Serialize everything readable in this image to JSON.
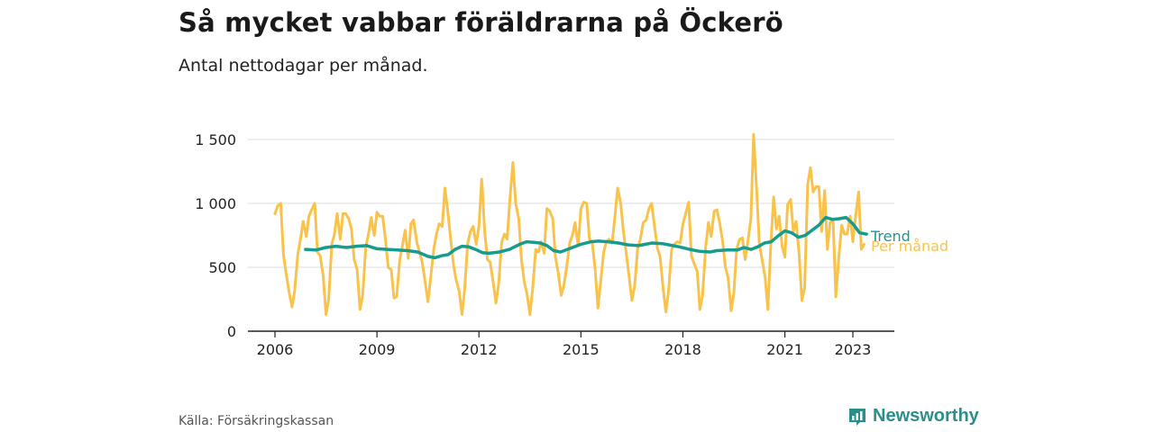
{
  "header": {
    "title": "Så mycket vabbar föräldrarna på Öckerö",
    "subtitle": "Antal nettodagar per månad."
  },
  "footer": {
    "source": "Källa: Försäkringskassan",
    "brand": "Newsworthy"
  },
  "colors": {
    "monthly": "#f9c34b",
    "trend": "#179b8e",
    "grid": "#dddddd",
    "axis": "#222222",
    "brand": "#2a8f8a"
  },
  "chart_data": {
    "type": "line",
    "xlabel": "",
    "ylabel": "",
    "ylim": [
      0,
      1600
    ],
    "xlim": [
      2006.0,
      2024.2
    ],
    "yticks": [
      {
        "value": 0,
        "label": "0"
      },
      {
        "value": 500,
        "label": "500"
      },
      {
        "value": 1000,
        "label": "1 000"
      },
      {
        "value": 1500,
        "label": "1 500"
      }
    ],
    "xticks": [
      {
        "value": 2006,
        "label": "2006"
      },
      {
        "value": 2009,
        "label": "2009"
      },
      {
        "value": 2012,
        "label": "2012"
      },
      {
        "value": 2015,
        "label": "2015"
      },
      {
        "value": 2018,
        "label": "2018"
      },
      {
        "value": 2021,
        "label": "2021"
      },
      {
        "value": 2023,
        "label": "2023"
      }
    ],
    "grid": true,
    "legend": "inline-right",
    "series": [
      {
        "name": "Per månad",
        "color": "#f9c34b",
        "points": [
          [
            2006.0,
            920
          ],
          [
            2006.08,
            980
          ],
          [
            2006.17,
            1000
          ],
          [
            2006.25,
            600
          ],
          [
            2006.33,
            450
          ],
          [
            2006.42,
            300
          ],
          [
            2006.5,
            190
          ],
          [
            2006.58,
            320
          ],
          [
            2006.67,
            600
          ],
          [
            2006.75,
            720
          ],
          [
            2006.83,
            860
          ],
          [
            2006.92,
            740
          ],
          [
            2007.0,
            900
          ],
          [
            2007.08,
            950
          ],
          [
            2007.17,
            1000
          ],
          [
            2007.25,
            620
          ],
          [
            2007.33,
            590
          ],
          [
            2007.42,
            430
          ],
          [
            2007.5,
            130
          ],
          [
            2007.58,
            250
          ],
          [
            2007.67,
            680
          ],
          [
            2007.75,
            760
          ],
          [
            2007.83,
            920
          ],
          [
            2007.92,
            720
          ],
          [
            2008.0,
            920
          ],
          [
            2008.08,
            920
          ],
          [
            2008.17,
            880
          ],
          [
            2008.25,
            800
          ],
          [
            2008.33,
            560
          ],
          [
            2008.42,
            480
          ],
          [
            2008.5,
            170
          ],
          [
            2008.58,
            280
          ],
          [
            2008.67,
            660
          ],
          [
            2008.75,
            760
          ],
          [
            2008.83,
            890
          ],
          [
            2008.92,
            750
          ],
          [
            2009.0,
            930
          ],
          [
            2009.08,
            900
          ],
          [
            2009.17,
            900
          ],
          [
            2009.25,
            720
          ],
          [
            2009.33,
            500
          ],
          [
            2009.42,
            480
          ],
          [
            2009.5,
            260
          ],
          [
            2009.58,
            270
          ],
          [
            2009.67,
            560
          ],
          [
            2009.75,
            670
          ],
          [
            2009.83,
            790
          ],
          [
            2009.92,
            570
          ],
          [
            2010.0,
            840
          ],
          [
            2010.08,
            870
          ],
          [
            2010.17,
            700
          ],
          [
            2010.25,
            620
          ],
          [
            2010.33,
            540
          ],
          [
            2010.42,
            380
          ],
          [
            2010.5,
            230
          ],
          [
            2010.58,
            420
          ],
          [
            2010.67,
            640
          ],
          [
            2010.75,
            760
          ],
          [
            2010.83,
            840
          ],
          [
            2010.92,
            820
          ],
          [
            2011.0,
            1120
          ],
          [
            2011.08,
            950
          ],
          [
            2011.17,
            720
          ],
          [
            2011.25,
            520
          ],
          [
            2011.33,
            400
          ],
          [
            2011.42,
            310
          ],
          [
            2011.5,
            130
          ],
          [
            2011.58,
            330
          ],
          [
            2011.67,
            690
          ],
          [
            2011.75,
            780
          ],
          [
            2011.83,
            820
          ],
          [
            2011.92,
            680
          ],
          [
            2012.0,
            820
          ],
          [
            2012.08,
            1190
          ],
          [
            2012.17,
            780
          ],
          [
            2012.25,
            560
          ],
          [
            2012.33,
            540
          ],
          [
            2012.42,
            380
          ],
          [
            2012.5,
            220
          ],
          [
            2012.58,
            370
          ],
          [
            2012.67,
            700
          ],
          [
            2012.75,
            760
          ],
          [
            2012.83,
            720
          ],
          [
            2012.92,
            1060
          ],
          [
            2013.0,
            1320
          ],
          [
            2013.08,
            1000
          ],
          [
            2013.17,
            880
          ],
          [
            2013.25,
            560
          ],
          [
            2013.33,
            390
          ],
          [
            2013.42,
            280
          ],
          [
            2013.5,
            130
          ],
          [
            2013.58,
            330
          ],
          [
            2013.67,
            640
          ],
          [
            2013.75,
            620
          ],
          [
            2013.83,
            700
          ],
          [
            2013.92,
            610
          ],
          [
            2014.0,
            960
          ],
          [
            2014.08,
            940
          ],
          [
            2014.17,
            880
          ],
          [
            2014.25,
            580
          ],
          [
            2014.33,
            460
          ],
          [
            2014.42,
            280
          ],
          [
            2014.5,
            360
          ],
          [
            2014.58,
            500
          ],
          [
            2014.67,
            690
          ],
          [
            2014.75,
            750
          ],
          [
            2014.83,
            850
          ],
          [
            2014.92,
            670
          ],
          [
            2015.0,
            960
          ],
          [
            2015.08,
            1010
          ],
          [
            2015.17,
            1000
          ],
          [
            2015.25,
            720
          ],
          [
            2015.33,
            700
          ],
          [
            2015.42,
            480
          ],
          [
            2015.5,
            180
          ],
          [
            2015.58,
            380
          ],
          [
            2015.67,
            620
          ],
          [
            2015.75,
            700
          ],
          [
            2015.83,
            720
          ],
          [
            2015.92,
            690
          ],
          [
            2016.0,
            900
          ],
          [
            2016.08,
            1120
          ],
          [
            2016.17,
            1000
          ],
          [
            2016.25,
            780
          ],
          [
            2016.33,
            620
          ],
          [
            2016.42,
            420
          ],
          [
            2016.5,
            240
          ],
          [
            2016.58,
            350
          ],
          [
            2016.67,
            650
          ],
          [
            2016.75,
            720
          ],
          [
            2016.83,
            850
          ],
          [
            2016.92,
            870
          ],
          [
            2017.0,
            960
          ],
          [
            2017.08,
            1000
          ],
          [
            2017.17,
            810
          ],
          [
            2017.25,
            650
          ],
          [
            2017.33,
            580
          ],
          [
            2017.42,
            330
          ],
          [
            2017.5,
            150
          ],
          [
            2017.58,
            320
          ],
          [
            2017.67,
            640
          ],
          [
            2017.75,
            680
          ],
          [
            2017.83,
            700
          ],
          [
            2017.92,
            690
          ],
          [
            2018.0,
            840
          ],
          [
            2018.08,
            920
          ],
          [
            2018.17,
            1010
          ],
          [
            2018.25,
            590
          ],
          [
            2018.33,
            530
          ],
          [
            2018.42,
            470
          ],
          [
            2018.5,
            170
          ],
          [
            2018.58,
            280
          ],
          [
            2018.67,
            660
          ],
          [
            2018.75,
            850
          ],
          [
            2018.83,
            740
          ],
          [
            2018.92,
            940
          ],
          [
            2019.0,
            950
          ],
          [
            2019.08,
            850
          ],
          [
            2019.17,
            700
          ],
          [
            2019.25,
            500
          ],
          [
            2019.33,
            420
          ],
          [
            2019.42,
            160
          ],
          [
            2019.5,
            300
          ],
          [
            2019.58,
            640
          ],
          [
            2019.67,
            720
          ],
          [
            2019.75,
            730
          ],
          [
            2019.83,
            560
          ],
          [
            2019.92,
            720
          ],
          [
            2020.0,
            880
          ],
          [
            2020.08,
            1540
          ],
          [
            2020.17,
            1100
          ],
          [
            2020.25,
            680
          ],
          [
            2020.33,
            560
          ],
          [
            2020.42,
            420
          ],
          [
            2020.5,
            170
          ],
          [
            2020.58,
            650
          ],
          [
            2020.67,
            1050
          ],
          [
            2020.75,
            800
          ],
          [
            2020.83,
            900
          ],
          [
            2020.92,
            660
          ],
          [
            2021.0,
            580
          ],
          [
            2021.08,
            990
          ],
          [
            2021.17,
            1030
          ],
          [
            2021.25,
            780
          ],
          [
            2021.33,
            860
          ],
          [
            2021.42,
            600
          ],
          [
            2021.5,
            240
          ],
          [
            2021.58,
            340
          ],
          [
            2021.67,
            1150
          ],
          [
            2021.75,
            1280
          ],
          [
            2021.83,
            1090
          ],
          [
            2021.92,
            1130
          ],
          [
            2022.0,
            1130
          ],
          [
            2022.08,
            780
          ],
          [
            2022.17,
            1100
          ],
          [
            2022.25,
            640
          ],
          [
            2022.33,
            850
          ],
          [
            2022.42,
            860
          ],
          [
            2022.5,
            270
          ],
          [
            2022.58,
            560
          ],
          [
            2022.67,
            830
          ],
          [
            2022.75,
            760
          ],
          [
            2022.83,
            760
          ],
          [
            2022.92,
            900
          ],
          [
            2023.0,
            700
          ],
          [
            2023.08,
            900
          ],
          [
            2023.17,
            1090
          ],
          [
            2023.25,
            640
          ],
          [
            2023.33,
            680
          ]
        ]
      },
      {
        "name": "Trend",
        "color": "#179b8e",
        "points": [
          [
            2006.9,
            640
          ],
          [
            2007.2,
            635
          ],
          [
            2007.5,
            655
          ],
          [
            2007.8,
            665
          ],
          [
            2008.1,
            655
          ],
          [
            2008.4,
            665
          ],
          [
            2008.7,
            670
          ],
          [
            2009.0,
            645
          ],
          [
            2009.3,
            640
          ],
          [
            2009.6,
            635
          ],
          [
            2009.9,
            630
          ],
          [
            2010.2,
            620
          ],
          [
            2010.5,
            585
          ],
          [
            2010.7,
            575
          ],
          [
            2010.9,
            590
          ],
          [
            2011.1,
            600
          ],
          [
            2011.3,
            640
          ],
          [
            2011.5,
            665
          ],
          [
            2011.7,
            660
          ],
          [
            2011.9,
            640
          ],
          [
            2012.1,
            615
          ],
          [
            2012.3,
            610
          ],
          [
            2012.6,
            620
          ],
          [
            2012.9,
            640
          ],
          [
            2013.2,
            680
          ],
          [
            2013.4,
            700
          ],
          [
            2013.6,
            695
          ],
          [
            2013.8,
            690
          ],
          [
            2014.0,
            670
          ],
          [
            2014.2,
            630
          ],
          [
            2014.4,
            620
          ],
          [
            2014.7,
            650
          ],
          [
            2015.0,
            680
          ],
          [
            2015.3,
            700
          ],
          [
            2015.5,
            705
          ],
          [
            2015.8,
            700
          ],
          [
            2016.1,
            690
          ],
          [
            2016.4,
            675
          ],
          [
            2016.7,
            670
          ],
          [
            2016.9,
            680
          ],
          [
            2017.1,
            690
          ],
          [
            2017.4,
            685
          ],
          [
            2017.7,
            670
          ],
          [
            2017.9,
            660
          ],
          [
            2018.2,
            640
          ],
          [
            2018.5,
            625
          ],
          [
            2018.8,
            620
          ],
          [
            2019.0,
            630
          ],
          [
            2019.3,
            635
          ],
          [
            2019.6,
            635
          ],
          [
            2019.8,
            655
          ],
          [
            2020.0,
            640
          ],
          [
            2020.2,
            660
          ],
          [
            2020.4,
            690
          ],
          [
            2020.6,
            700
          ],
          [
            2020.8,
            745
          ],
          [
            2021.0,
            785
          ],
          [
            2021.2,
            770
          ],
          [
            2021.4,
            735
          ],
          [
            2021.6,
            750
          ],
          [
            2021.8,
            790
          ],
          [
            2022.0,
            830
          ],
          [
            2022.2,
            890
          ],
          [
            2022.4,
            875
          ],
          [
            2022.6,
            880
          ],
          [
            2022.8,
            890
          ],
          [
            2023.0,
            840
          ],
          [
            2023.2,
            770
          ],
          [
            2023.4,
            760
          ]
        ]
      }
    ]
  }
}
